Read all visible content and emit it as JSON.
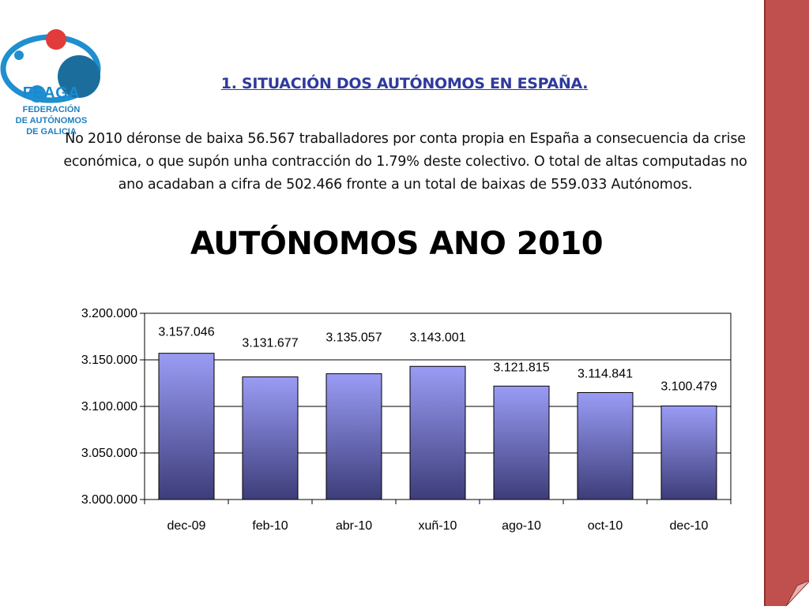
{
  "logo": {
    "brand": "FEAGA",
    "line1": "FEDERACIÓN",
    "line2": "DE AUTÓNOMOS",
    "line3": "DE GALICIA"
  },
  "section_title": "1. SITUACIÓN DOS AUTÓNOMOS EN ESPAÑA.",
  "paragraph": "No   2010 déronse de baixa 56.567 traballadores por conta propia en España a consecuencia da crise económica, o que supón unha contracción do 1.79% deste colectivo. O total de altas computadas no ano acadaban a cifra de 502.466 fronte a un total de baixas de 559.033 Autónomos.",
  "colors": {
    "bar_top": "#9a9cf5",
    "bar_bottom": "#3d3d7a",
    "side_bar": "#c0504d"
  },
  "chart_data": {
    "type": "bar",
    "title": "AUTÓNOMOS ANO 2010",
    "xlabel": "",
    "ylabel": "",
    "categories": [
      "dec-09",
      "feb-10",
      "abr-10",
      "xuñ-10",
      "ago-10",
      "oct-10",
      "dec-10"
    ],
    "values": [
      3157046,
      3131677,
      3135057,
      3143001,
      3121815,
      3114841,
      3100479
    ],
    "value_labels": [
      "3.157.046",
      "3.131.677",
      "3.135.057",
      "3.143.001",
      "3.121.815",
      "3.114.841",
      "3.100.479"
    ],
    "ylim": [
      3000000,
      3200000
    ],
    "yticks": [
      3000000,
      3050000,
      3100000,
      3150000,
      3200000
    ],
    "ytick_labels": [
      "3.000.000",
      "3.050.000",
      "3.100.000",
      "3.150.000",
      "3.200.000"
    ],
    "grid": true,
    "legend": "none"
  }
}
